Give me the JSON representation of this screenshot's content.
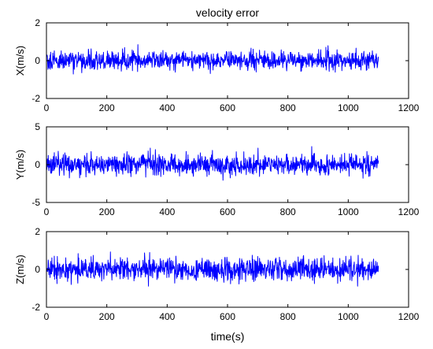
{
  "figure": {
    "title": "velocity error",
    "xlabel": "time(s)"
  },
  "colors": {
    "series": "#0000ff",
    "axes": "#000000",
    "background": "#ffffff"
  },
  "chart_data": [
    {
      "type": "line",
      "ylabel": "X(m/s)",
      "xlim": [
        0,
        1200
      ],
      "ylim": [
        -2,
        2
      ],
      "xticks": [
        0,
        200,
        400,
        600,
        800,
        1000,
        1200
      ],
      "yticks": [
        -2,
        0,
        2
      ],
      "grid": false,
      "series": [
        {
          "x_range": [
            1,
            1100
          ],
          "x_step": 1,
          "mean": 0,
          "std": 0.25,
          "min": -1.05,
          "max": 0.85
        }
      ]
    },
    {
      "type": "line",
      "ylabel": "Y(m/s)",
      "xlim": [
        0,
        1200
      ],
      "ylim": [
        -5,
        5
      ],
      "xticks": [
        0,
        200,
        400,
        600,
        800,
        1000,
        1200
      ],
      "yticks": [
        -5,
        0,
        5
      ],
      "grid": false,
      "series": [
        {
          "x_range": [
            1,
            1100
          ],
          "x_step": 1,
          "mean": 0,
          "std": 0.7,
          "min": -2.1,
          "max": 2.4
        }
      ]
    },
    {
      "type": "line",
      "ylabel": "Z(m/s)",
      "xlim": [
        0,
        1200
      ],
      "ylim": [
        -2,
        2
      ],
      "xticks": [
        0,
        200,
        400,
        600,
        800,
        1000,
        1200
      ],
      "yticks": [
        -2,
        0,
        2
      ],
      "grid": false,
      "series": [
        {
          "x_range": [
            1,
            1100
          ],
          "x_step": 1,
          "mean": 0,
          "std": 0.3,
          "min": -1.2,
          "max": 1.35
        }
      ]
    }
  ]
}
